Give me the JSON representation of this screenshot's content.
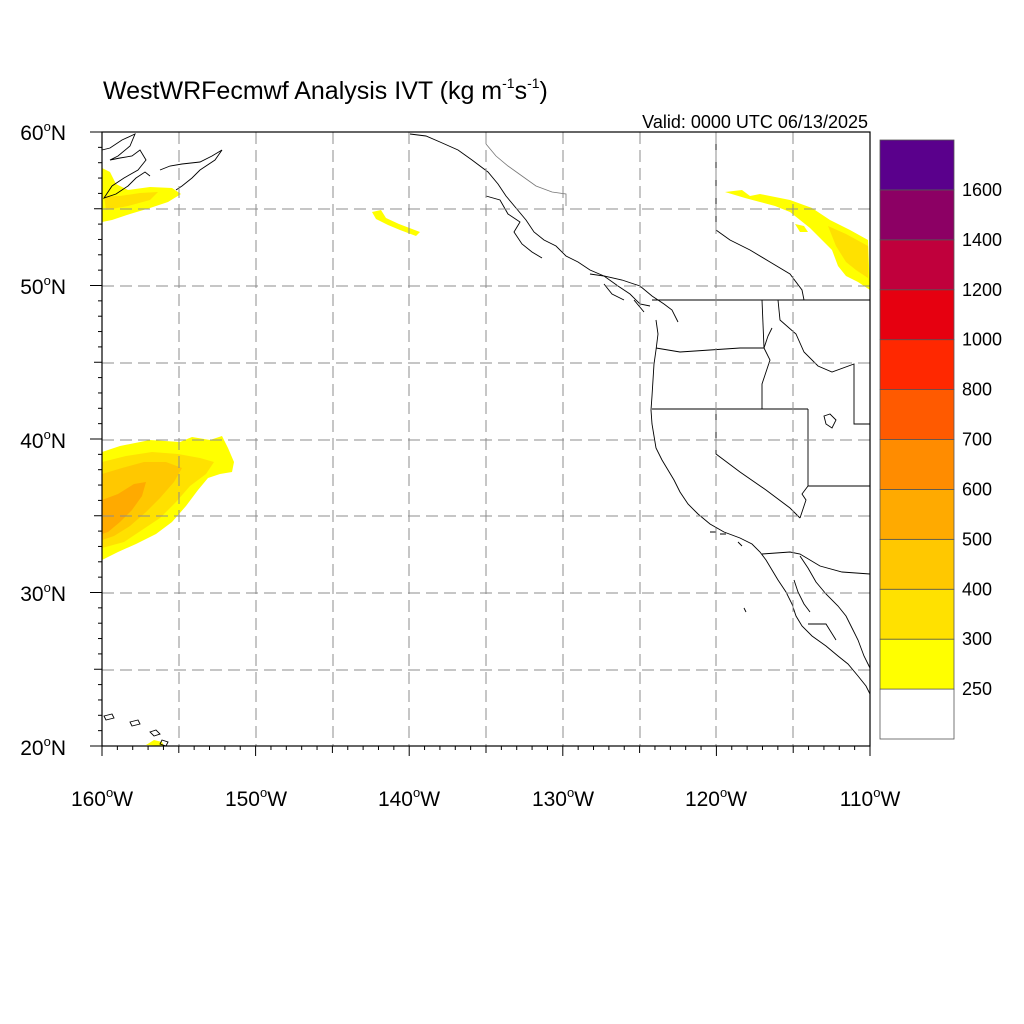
{
  "title_main": "WestWRFecmwf Analysis IVT (kg m",
  "title_sup1": "-1",
  "title_mid": "s",
  "title_sup2": "-1",
  "title_end": ")",
  "valid_label": "Valid: 0000 UTC 06/13/2025",
  "map": {
    "lon_range": [
      -160,
      -110
    ],
    "lat_range": [
      20,
      60
    ],
    "lon_ticks": [
      {
        "value": -160,
        "deg": "160",
        "hemi": "W"
      },
      {
        "value": -150,
        "deg": "150",
        "hemi": "W"
      },
      {
        "value": -140,
        "deg": "140",
        "hemi": "W"
      },
      {
        "value": -130,
        "deg": "130",
        "hemi": "W"
      },
      {
        "value": -120,
        "deg": "120",
        "hemi": "W"
      },
      {
        "value": -110,
        "deg": "110",
        "hemi": "W"
      }
    ],
    "lat_ticks": [
      {
        "value": 60,
        "deg": "60",
        "hemi": "N"
      },
      {
        "value": 50,
        "deg": "50",
        "hemi": "N"
      },
      {
        "value": 40,
        "deg": "40",
        "hemi": "N"
      },
      {
        "value": 30,
        "deg": "30",
        "hemi": "N"
      },
      {
        "value": 20,
        "deg": "20",
        "hemi": "N"
      }
    ],
    "grid_lons": [
      -155,
      -150,
      -145,
      -140,
      -135,
      -130,
      -125,
      -120,
      -115
    ],
    "grid_lats": [
      55,
      50,
      45,
      40,
      35,
      30,
      25
    ]
  },
  "colorbar": {
    "colors": [
      "#ffffff",
      "#ffff00",
      "#ffe100",
      "#ffc800",
      "#ffaa00",
      "#ff8c00",
      "#ff5a00",
      "#ff2800",
      "#e60010",
      "#c0003c",
      "#8c0064",
      "#5a008c"
    ],
    "labels": [
      "250",
      "300",
      "400",
      "500",
      "600",
      "700",
      "800",
      "1000",
      "1200",
      "1400",
      "1600"
    ]
  }
}
